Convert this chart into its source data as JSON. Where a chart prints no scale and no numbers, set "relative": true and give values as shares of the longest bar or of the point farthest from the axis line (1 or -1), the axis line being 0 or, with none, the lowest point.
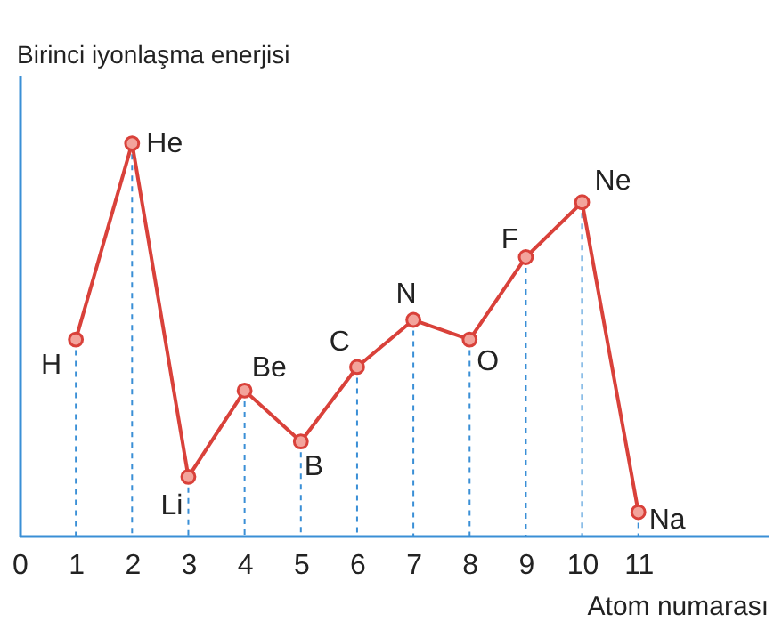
{
  "chart_data": {
    "type": "line",
    "relative": true,
    "ylabel": "Birinci iyonlaşma enerjisi",
    "xlabel": "Atom numarası",
    "x": [
      1,
      2,
      3,
      4,
      5,
      6,
      7,
      8,
      9,
      10,
      11
    ],
    "xlim": [
      0,
      13.3
    ],
    "xticks": [
      0,
      1,
      2,
      3,
      4,
      5,
      6,
      7,
      8,
      9,
      10,
      11
    ],
    "series": [
      {
        "color": "#d9413a",
        "values": [
          0.5,
          1,
          0.15,
          0.37,
          0.24,
          0.43,
          0.55,
          0.5,
          0.71,
          0.85,
          0.06
        ]
      }
    ],
    "marker": "circle",
    "grid": "x",
    "line_style": "solid",
    "annotations": [
      {
        "text": "H",
        "x": 1,
        "y": 0.5
      },
      {
        "text": "He",
        "x": 2,
        "y": 1
      },
      {
        "text": "Li",
        "x": 3,
        "y": 0.15
      },
      {
        "text": "Be",
        "x": 4,
        "y": 0.37
      },
      {
        "text": "B",
        "x": 5,
        "y": 0.24
      },
      {
        "text": "C",
        "x": 6,
        "y": 0.43
      },
      {
        "text": "N",
        "x": 7,
        "y": 0.55
      },
      {
        "text": "O",
        "x": 8,
        "y": 0.5
      },
      {
        "text": "F",
        "x": 9,
        "y": 0.71
      },
      {
        "text": "Ne",
        "x": 10,
        "y": 0.85
      },
      {
        "text": "Na",
        "x": 11,
        "y": 0.06
      }
    ]
  }
}
